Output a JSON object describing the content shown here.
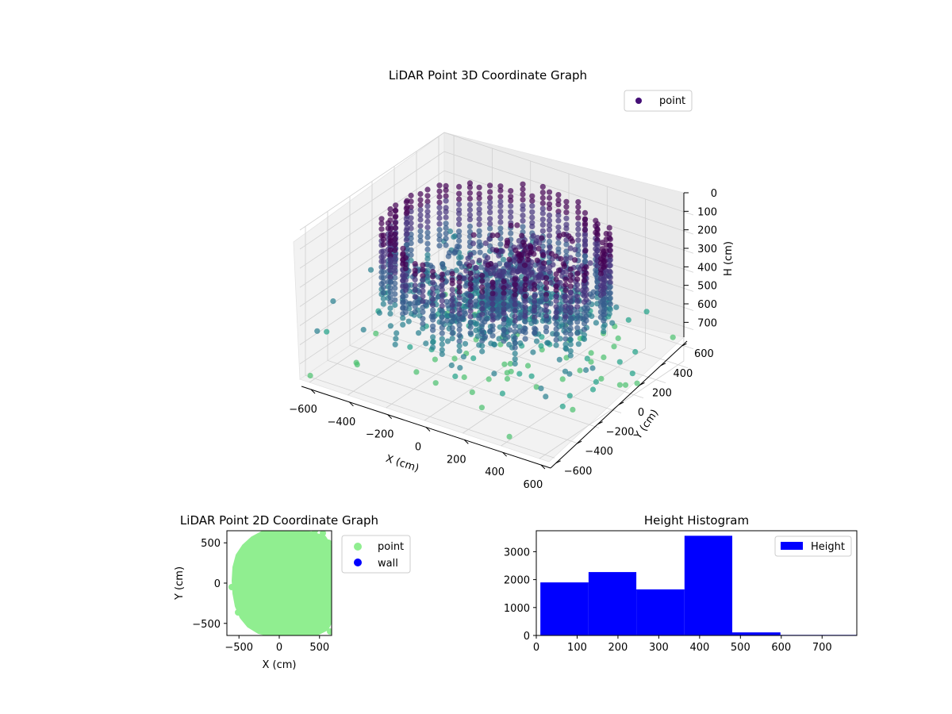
{
  "colors": {
    "scatter_cmap": [
      "#440154",
      "#46337e",
      "#365c8d",
      "#277f8e",
      "#1fa187",
      "#4ac16d"
    ],
    "scatter2d_point": "#90ee90",
    "scatter2d_wall": "#0000ff",
    "histogram_bar": "#0000ff",
    "legend_marker_3d": "#440f76"
  },
  "chart_data": [
    {
      "type": "scatter",
      "subtype": "3d",
      "title": "LiDAR Point 3D Coordinate Graph",
      "xlabel": "X (cm)",
      "ylabel": "Y (cm)",
      "zlabel": "H (cm)",
      "xlim": [
        -650,
        650
      ],
      "ylim": [
        -650,
        650
      ],
      "zlim": [
        0,
        780
      ],
      "z_inverted": true,
      "xticks": [
        "−600",
        "−400",
        "−200",
        "0",
        "200",
        "400",
        "600"
      ],
      "yticks": [
        "−600",
        "−400",
        "−200",
        "0",
        "200",
        "400",
        "600"
      ],
      "zticks": [
        "0",
        "100",
        "200",
        "300",
        "400",
        "500",
        "600",
        "700"
      ],
      "legend": [
        "point"
      ],
      "legend_position": "top-right",
      "grid": true,
      "colormap": "viridis (by height)"
    },
    {
      "type": "scatter",
      "title": "LiDAR Point 2D Coordinate Graph",
      "xlabel": "X (cm)",
      "ylabel": "Y (cm)",
      "xlim": [
        -650,
        650
      ],
      "ylim": [
        -650,
        650
      ],
      "xticks": [
        "−500",
        "0",
        "500"
      ],
      "yticks": [
        "500",
        "0",
        "−500"
      ],
      "series": [
        {
          "name": "point",
          "color": "#90ee90"
        },
        {
          "name": "wall",
          "color": "#0000ff"
        }
      ],
      "legend_position": "outside right",
      "grid": false
    },
    {
      "type": "bar",
      "subtype": "histogram",
      "title": "Height Histogram",
      "xlabel": "",
      "ylabel": "",
      "xlim": [
        0,
        785
      ],
      "ylim": [
        0,
        3750
      ],
      "xticks": [
        "0",
        "100",
        "200",
        "300",
        "400",
        "500",
        "600",
        "700"
      ],
      "yticks": [
        "0",
        "1000",
        "2000",
        "3000"
      ],
      "bin_edges": [
        10,
        128,
        245,
        363,
        480,
        598,
        785
      ],
      "values": [
        1900,
        2270,
        1650,
        3570,
        110,
        20
      ],
      "legend": [
        "Height"
      ],
      "legend_position": "top-right",
      "grid": false
    }
  ]
}
